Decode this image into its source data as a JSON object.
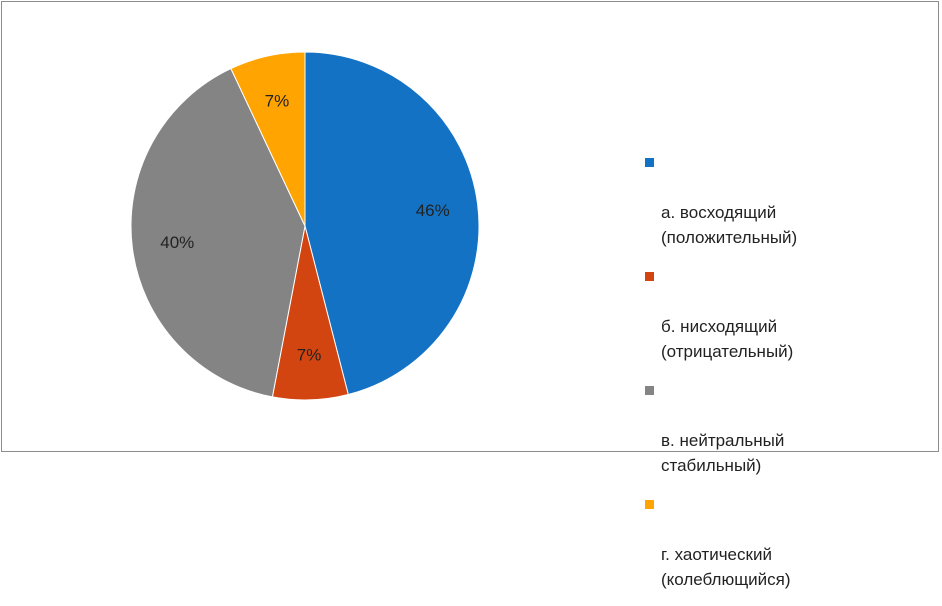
{
  "chart_data": {
    "type": "pie",
    "labels": [
      "а. восходящий\n(положительный)",
      "б. нисходящий\n(отрицательный)",
      "в. нейтральный\nстабильный)",
      "г.  хаотический\n(колеблющийся)"
    ],
    "values": [
      46,
      7,
      40,
      7
    ],
    "value_labels": [
      "46%",
      "7%",
      "40%",
      "7%"
    ],
    "colors": [
      "#1472c4",
      "#d24510",
      "#848484",
      "#ffa400"
    ],
    "legend_position": "right"
  }
}
